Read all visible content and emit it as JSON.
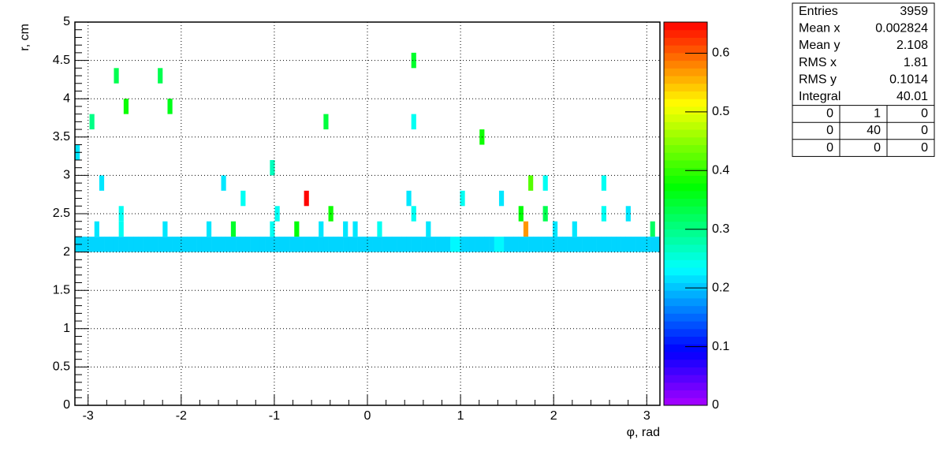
{
  "chart_data": {
    "type": "heatmap",
    "x_label": "φ, rad",
    "y_label": "r, cm",
    "xlim": [
      -3.1416,
      3.1416
    ],
    "ylim": [
      0,
      5
    ],
    "nbinsx": 120,
    "nbinsy": 25,
    "xticks": [
      -3,
      -2,
      -1,
      0,
      1,
      2,
      3
    ],
    "yticks": [
      0,
      0.5,
      1,
      1.5,
      2,
      2.5,
      3,
      3.5,
      4,
      4.5,
      5
    ],
    "zlim": [
      0,
      0.653
    ],
    "zticks": [
      0,
      0.1,
      0.2,
      0.3,
      0.4,
      0.5,
      0.6
    ],
    "grid": true,
    "cells": [
      [
        0,
        16,
        0.22
      ],
      [
        3,
        18,
        0.3
      ],
      [
        4,
        11,
        0.22
      ],
      [
        5,
        14,
        0.22
      ],
      [
        8,
        21,
        0.33
      ],
      [
        9,
        12,
        0.24
      ],
      [
        9,
        11,
        0.24
      ],
      [
        10,
        19,
        0.38
      ],
      [
        17,
        21,
        0.33
      ],
      [
        18,
        11,
        0.22
      ],
      [
        19,
        19,
        0.36
      ],
      [
        27,
        11,
        0.22
      ],
      [
        30,
        14,
        0.22
      ],
      [
        32,
        11,
        0.35
      ],
      [
        34,
        13,
        0.24
      ],
      [
        40,
        15,
        0.27
      ],
      [
        40,
        11,
        0.24
      ],
      [
        41,
        12,
        0.24
      ],
      [
        45,
        11,
        0.37
      ],
      [
        47,
        13,
        0.65
      ],
      [
        50,
        11,
        0.22
      ],
      [
        51,
        18,
        0.34
      ],
      [
        52,
        12,
        0.38
      ],
      [
        55,
        11,
        0.22
      ],
      [
        57,
        11,
        0.22
      ],
      [
        62,
        11,
        0.24
      ],
      [
        68,
        13,
        0.22
      ],
      [
        69,
        22,
        0.35
      ],
      [
        69,
        18,
        0.24
      ],
      [
        69,
        12,
        0.24
      ],
      [
        72,
        11,
        0.22
      ],
      [
        79,
        13,
        0.24
      ],
      [
        83,
        17,
        0.38
      ],
      [
        87,
        13,
        0.22
      ],
      [
        91,
        12,
        0.37
      ],
      [
        92,
        11,
        0.57
      ],
      [
        93,
        14,
        0.42
      ],
      [
        96,
        14,
        0.24
      ],
      [
        96,
        12,
        0.33
      ],
      [
        98,
        11,
        0.22
      ],
      [
        102,
        11,
        0.22
      ],
      [
        108,
        14,
        0.24
      ],
      [
        108,
        12,
        0.24
      ],
      [
        113,
        12,
        0.22
      ],
      [
        118,
        11,
        0.32
      ]
    ],
    "band_row": {
      "iy": 10,
      "z": [
        0.21,
        0.21,
        0.21,
        0.21,
        0.21,
        0.21,
        0.21,
        0.21,
        0.21,
        0.21,
        0.21,
        0.21,
        0.21,
        0.21,
        0.21,
        0.21,
        0.21,
        0.21,
        0.21,
        0.21,
        0.21,
        0.21,
        0.21,
        0.21,
        0.21,
        0.21,
        0.21,
        0.21,
        0.21,
        0.21,
        0.21,
        0.21,
        0.21,
        0.21,
        0.21,
        0.21,
        0.21,
        0.21,
        0.21,
        0.21,
        0.21,
        0.21,
        0.21,
        0.21,
        0.21,
        0.21,
        0.21,
        0.21,
        0.21,
        0.21,
        0.21,
        0.21,
        0.21,
        0.21,
        0.21,
        0.21,
        0.21,
        0.21,
        0.21,
        0.21,
        0.21,
        0.21,
        0.21,
        0.21,
        0.21,
        0.21,
        0.21,
        0.21,
        0.21,
        0.21,
        0.21,
        0.21,
        0.21,
        0.21,
        0.21,
        0.21,
        0.21,
        0.23,
        0.23,
        0.21,
        0.21,
        0.21,
        0.21,
        0.21,
        0.21,
        0.21,
        0.23,
        0.23,
        0.21,
        0.21,
        0.21,
        0.21,
        0.21,
        0.21,
        0.21,
        0.21,
        0.21,
        0.21,
        0.21,
        0.21,
        0.21,
        0.21,
        0.21,
        0.21,
        0.21,
        0.21,
        0.21,
        0.21,
        0.21,
        0.21,
        0.21,
        0.21,
        0.21,
        0.21,
        0.21,
        0.21,
        0.21,
        0.21,
        0.21,
        0.21
      ]
    },
    "stats": {
      "rows": [
        [
          "Entries",
          3959
        ],
        [
          "Mean x",
          0.002824
        ],
        [
          "Mean y",
          2.108
        ],
        [
          "RMS x",
          1.81
        ],
        [
          "RMS y",
          0.1014
        ],
        [
          "Integral",
          40.01
        ]
      ],
      "grid": [
        [
          0,
          1,
          0
        ],
        [
          0,
          40,
          0
        ],
        [
          0,
          0,
          0
        ]
      ]
    }
  }
}
